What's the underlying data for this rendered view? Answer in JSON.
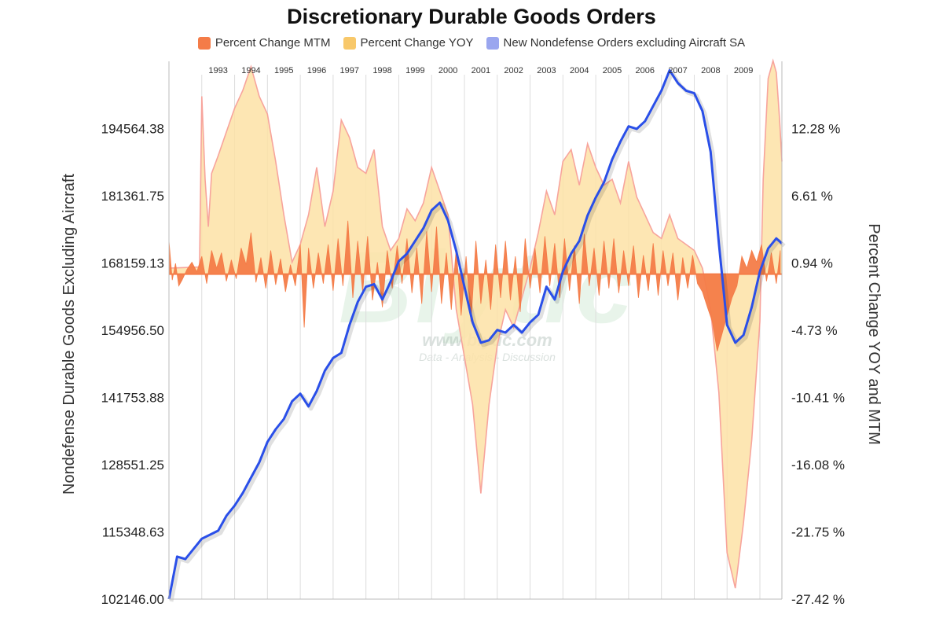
{
  "chart_data": {
    "type": "line",
    "title": "Discretionary Durable Goods Orders",
    "legend": "top",
    "y_left_label": "Nondefense Durable Goods Excluding Aircraft",
    "y_right_label": "Percent Change YOY and MTM",
    "y_left_ticks": [
      "194564.38",
      "181361.75",
      "168159.13",
      "154956.50",
      "141753.88",
      "128551.25",
      "115348.63",
      "102146.00"
    ],
    "y_right_ticks": [
      "12.28 %",
      "6.61 %",
      "0.94 %",
      "-4.73 %",
      "-10.41 %",
      "-16.08 %",
      "-21.75 %",
      "-27.42 %"
    ],
    "y_left_range": [
      102146.0,
      207767.0
    ],
    "y_right_range": [
      -27.42,
      17.95
    ],
    "x_range": [
      1992.0,
      2010.67
    ],
    "year_labels": [
      "1993",
      "1994",
      "1995",
      "1996",
      "1997",
      "1998",
      "1999",
      "2000",
      "2001",
      "2002",
      "2003",
      "2004",
      "2005",
      "2006",
      "2007",
      "2008",
      "2009"
    ],
    "grid": true,
    "colors": {
      "mtm": "#f47c48",
      "yoy_fill": "#fde2a6",
      "yoy_line": "#f7a49c",
      "orders": "#2a4fe8",
      "legend_orders": "#9aa6ef",
      "legend_yoy": "#f8c86a"
    },
    "series": [
      {
        "name": "New Nondefense Orders excluding Aircraft SA",
        "axis": "left",
        "points": [
          [
            1992.0,
            102146
          ],
          [
            1992.25,
            110500
          ],
          [
            1992.5,
            110000
          ],
          [
            1992.75,
            112000
          ],
          [
            1993.0,
            114000
          ],
          [
            1993.25,
            114800
          ],
          [
            1993.5,
            115600
          ],
          [
            1993.75,
            118500
          ],
          [
            1994.0,
            120500
          ],
          [
            1994.25,
            123000
          ],
          [
            1994.5,
            126000
          ],
          [
            1994.75,
            129000
          ],
          [
            1995.0,
            133000
          ],
          [
            1995.25,
            135500
          ],
          [
            1995.5,
            137500
          ],
          [
            1995.75,
            141000
          ],
          [
            1996.0,
            142500
          ],
          [
            1996.25,
            140000
          ],
          [
            1996.5,
            143000
          ],
          [
            1996.75,
            147000
          ],
          [
            1997.0,
            149500
          ],
          [
            1997.25,
            150500
          ],
          [
            1997.5,
            156000
          ],
          [
            1997.75,
            160500
          ],
          [
            1998.0,
            163500
          ],
          [
            1998.25,
            164000
          ],
          [
            1998.5,
            161000
          ],
          [
            1998.75,
            164500
          ],
          [
            1999.0,
            168500
          ],
          [
            1999.25,
            170000
          ],
          [
            1999.5,
            172500
          ],
          [
            1999.75,
            175000
          ],
          [
            2000.0,
            178500
          ],
          [
            2000.25,
            180000
          ],
          [
            2000.5,
            176500
          ],
          [
            2000.75,
            170500
          ],
          [
            2001.0,
            163500
          ],
          [
            2001.25,
            156500
          ],
          [
            2001.5,
            152500
          ],
          [
            2001.75,
            153000
          ],
          [
            2002.0,
            155000
          ],
          [
            2002.25,
            154500
          ],
          [
            2002.5,
            156000
          ],
          [
            2002.75,
            154500
          ],
          [
            2003.0,
            156500
          ],
          [
            2003.25,
            158000
          ],
          [
            2003.5,
            163500
          ],
          [
            2003.75,
            161000
          ],
          [
            2004.0,
            166500
          ],
          [
            2004.25,
            170000
          ],
          [
            2004.5,
            172500
          ],
          [
            2004.75,
            177500
          ],
          [
            2005.0,
            181000
          ],
          [
            2005.25,
            184000
          ],
          [
            2005.5,
            188500
          ],
          [
            2005.75,
            192000
          ],
          [
            2006.0,
            195000
          ],
          [
            2006.25,
            194500
          ],
          [
            2006.5,
            196000
          ],
          [
            2006.75,
            199000
          ],
          [
            2007.0,
            202000
          ],
          [
            2007.25,
            206000
          ],
          [
            2007.5,
            203500
          ],
          [
            2007.75,
            202000
          ],
          [
            2008.0,
            201500
          ],
          [
            2008.25,
            198000
          ],
          [
            2008.5,
            190000
          ],
          [
            2008.75,
            172000
          ],
          [
            2009.0,
            156000
          ],
          [
            2009.25,
            152500
          ],
          [
            2009.5,
            154000
          ],
          [
            2009.75,
            159500
          ],
          [
            2010.0,
            166500
          ],
          [
            2010.25,
            171000
          ],
          [
            2010.5,
            173000
          ],
          [
            2010.67,
            172000
          ]
        ]
      },
      {
        "name": "Percent Change YOY",
        "axis": "right",
        "points": [
          [
            1992.0,
            0.5
          ],
          [
            1992.93,
            0.6
          ],
          [
            1993.0,
            15.0
          ],
          [
            1993.1,
            8.0
          ],
          [
            1993.2,
            4.0
          ],
          [
            1993.3,
            8.5
          ],
          [
            1993.5,
            10.0
          ],
          [
            1993.75,
            12.0
          ],
          [
            1994.0,
            14.0
          ],
          [
            1994.25,
            15.5
          ],
          [
            1994.5,
            17.5
          ],
          [
            1994.75,
            15.0
          ],
          [
            1995.0,
            13.5
          ],
          [
            1995.25,
            9.5
          ],
          [
            1995.5,
            5.0
          ],
          [
            1995.75,
            1.0
          ],
          [
            1996.0,
            2.5
          ],
          [
            1996.25,
            5.0
          ],
          [
            1996.5,
            9.0
          ],
          [
            1996.75,
            4.0
          ],
          [
            1997.0,
            7.0
          ],
          [
            1997.25,
            13.0
          ],
          [
            1997.5,
            11.5
          ],
          [
            1997.75,
            9.0
          ],
          [
            1998.0,
            8.5
          ],
          [
            1998.25,
            10.5
          ],
          [
            1998.5,
            4.0
          ],
          [
            1998.75,
            2.0
          ],
          [
            1999.0,
            3.0
          ],
          [
            1999.25,
            5.5
          ],
          [
            1999.5,
            4.5
          ],
          [
            1999.75,
            6.0
          ],
          [
            2000.0,
            9.0
          ],
          [
            2000.25,
            7.0
          ],
          [
            2000.5,
            5.0
          ],
          [
            2000.75,
            -3.0
          ],
          [
            2001.0,
            -7.0
          ],
          [
            2001.25,
            -11.0
          ],
          [
            2001.5,
            -18.5
          ],
          [
            2001.75,
            -11.0
          ],
          [
            2002.0,
            -6.0
          ],
          [
            2002.25,
            -3.0
          ],
          [
            2002.5,
            -4.5
          ],
          [
            2002.75,
            -2.0
          ],
          [
            2003.0,
            0.5
          ],
          [
            2003.25,
            3.5
          ],
          [
            2003.5,
            7.0
          ],
          [
            2003.75,
            5.0
          ],
          [
            2004.0,
            9.5
          ],
          [
            2004.25,
            10.5
          ],
          [
            2004.5,
            7.5
          ],
          [
            2004.75,
            11.0
          ],
          [
            2005.0,
            9.0
          ],
          [
            2005.25,
            7.5
          ],
          [
            2005.5,
            8.0
          ],
          [
            2005.75,
            6.0
          ],
          [
            2006.0,
            9.5
          ],
          [
            2006.25,
            6.5
          ],
          [
            2006.5,
            5.0
          ],
          [
            2006.75,
            3.5
          ],
          [
            2007.0,
            3.0
          ],
          [
            2007.25,
            5.0
          ],
          [
            2007.5,
            3.0
          ],
          [
            2007.75,
            2.5
          ],
          [
            2008.0,
            2.0
          ],
          [
            2008.25,
            0.5
          ],
          [
            2008.5,
            -3.0
          ],
          [
            2008.75,
            -10.0
          ],
          [
            2009.0,
            -23.5
          ],
          [
            2009.25,
            -26.5
          ],
          [
            2009.5,
            -21.0
          ],
          [
            2009.75,
            -14.0
          ],
          [
            2010.0,
            -4.0
          ],
          [
            2010.1,
            8.0
          ],
          [
            2010.25,
            16.5
          ],
          [
            2010.4,
            18.0
          ],
          [
            2010.5,
            17.0
          ],
          [
            2010.6,
            13.0
          ],
          [
            2010.67,
            9.5
          ]
        ]
      },
      {
        "name": "Percent Change MTM",
        "axis": "right",
        "points": [
          [
            1992.0,
            2.8
          ],
          [
            1992.1,
            -0.5
          ],
          [
            1992.2,
            0.9
          ],
          [
            1992.3,
            -1.0
          ],
          [
            1992.4,
            -0.5
          ],
          [
            1992.55,
            0.4
          ],
          [
            1992.7,
            1.0
          ],
          [
            1992.85,
            0.2
          ],
          [
            1993.0,
            1.5
          ],
          [
            1993.15,
            -0.8
          ],
          [
            1993.3,
            2.0
          ],
          [
            1993.45,
            0.5
          ],
          [
            1993.6,
            1.8
          ],
          [
            1993.75,
            -0.6
          ],
          [
            1993.9,
            1.2
          ],
          [
            1994.05,
            -0.4
          ],
          [
            1994.2,
            2.2
          ],
          [
            1994.35,
            0.8
          ],
          [
            1994.5,
            3.5
          ],
          [
            1994.65,
            -0.7
          ],
          [
            1994.8,
            1.4
          ],
          [
            1994.95,
            -1.2
          ],
          [
            1995.1,
            2.0
          ],
          [
            1995.25,
            -0.9
          ],
          [
            1995.4,
            1.3
          ],
          [
            1995.55,
            -1.5
          ],
          [
            1995.7,
            0.8
          ],
          [
            1995.85,
            -1.0
          ],
          [
            1996.0,
            2.5
          ],
          [
            1996.12,
            -4.5
          ],
          [
            1996.25,
            2.2
          ],
          [
            1996.4,
            -1.2
          ],
          [
            1996.55,
            1.8
          ],
          [
            1996.7,
            -0.8
          ],
          [
            1996.85,
            2.5
          ],
          [
            1997.0,
            -1.4
          ],
          [
            1997.15,
            3.0
          ],
          [
            1997.3,
            -1.0
          ],
          [
            1997.45,
            4.5
          ],
          [
            1997.6,
            -2.0
          ],
          [
            1997.75,
            2.8
          ],
          [
            1997.9,
            -1.5
          ],
          [
            1998.05,
            3.2
          ],
          [
            1998.2,
            -2.2
          ],
          [
            1998.35,
            1.0
          ],
          [
            1998.5,
            -2.8
          ],
          [
            1998.65,
            2.0
          ],
          [
            1998.8,
            -1.2
          ],
          [
            1998.95,
            2.4
          ],
          [
            1999.1,
            -0.8
          ],
          [
            1999.25,
            3.0
          ],
          [
            1999.4,
            -1.6
          ],
          [
            1999.55,
            2.2
          ],
          [
            1999.7,
            -2.5
          ],
          [
            1999.85,
            3.6
          ],
          [
            2000.0,
            -1.5
          ],
          [
            2000.15,
            4.0
          ],
          [
            2000.3,
            -2.5
          ],
          [
            2000.45,
            1.8
          ],
          [
            2000.6,
            -3.0
          ],
          [
            2000.75,
            2.2
          ],
          [
            2000.9,
            -3.5
          ],
          [
            2001.05,
            1.5
          ],
          [
            2001.2,
            -4.0
          ],
          [
            2001.35,
            2.8
          ],
          [
            2001.5,
            -2.5
          ],
          [
            2001.65,
            1.2
          ],
          [
            2001.8,
            -3.0
          ],
          [
            2001.95,
            2.5
          ],
          [
            2002.1,
            -2.0
          ],
          [
            2002.25,
            2.8
          ],
          [
            2002.4,
            -2.2
          ],
          [
            2002.55,
            1.5
          ],
          [
            2002.7,
            -3.2
          ],
          [
            2002.85,
            3.0
          ],
          [
            2003.0,
            -1.2
          ],
          [
            2003.15,
            2.2
          ],
          [
            2003.3,
            -1.6
          ],
          [
            2003.45,
            3.2
          ],
          [
            2003.6,
            -1.0
          ],
          [
            2003.75,
            2.6
          ],
          [
            2003.9,
            -2.0
          ],
          [
            2004.05,
            3.0
          ],
          [
            2004.2,
            -1.4
          ],
          [
            2004.35,
            2.4
          ],
          [
            2004.5,
            -2.5
          ],
          [
            2004.65,
            3.4
          ],
          [
            2004.8,
            -1.0
          ],
          [
            2004.95,
            2.2
          ],
          [
            2005.1,
            -1.8
          ],
          [
            2005.25,
            2.8
          ],
          [
            2005.4,
            -1.2
          ],
          [
            2005.55,
            3.0
          ],
          [
            2005.7,
            -1.6
          ],
          [
            2005.85,
            2.0
          ],
          [
            2006.0,
            -1.0
          ],
          [
            2006.15,
            2.4
          ],
          [
            2006.3,
            -2.0
          ],
          [
            2006.45,
            1.6
          ],
          [
            2006.6,
            -1.4
          ],
          [
            2006.75,
            2.6
          ],
          [
            2006.9,
            -1.8
          ],
          [
            2007.05,
            2.0
          ],
          [
            2007.2,
            -1.0
          ],
          [
            2007.35,
            1.8
          ],
          [
            2007.5,
            -2.2
          ],
          [
            2007.65,
            1.4
          ],
          [
            2007.8,
            -1.2
          ],
          [
            2007.95,
            1.6
          ],
          [
            2008.1,
            -0.8
          ],
          [
            2008.25,
            -1.5
          ],
          [
            2008.4,
            -2.8
          ],
          [
            2008.55,
            -4.0
          ],
          [
            2008.7,
            -6.5
          ],
          [
            2008.85,
            -5.0
          ],
          [
            2009.0,
            -3.5
          ],
          [
            2009.15,
            -2.0
          ],
          [
            2009.3,
            -1.0
          ],
          [
            2009.45,
            1.5
          ],
          [
            2009.6,
            0.5
          ],
          [
            2009.75,
            2.0
          ],
          [
            2009.9,
            1.0
          ],
          [
            2010.05,
            2.5
          ],
          [
            2010.2,
            -0.6
          ],
          [
            2010.35,
            1.8
          ],
          [
            2010.5,
            -0.8
          ],
          [
            2010.62,
            2.0
          ]
        ]
      }
    ]
  },
  "watermark": {
    "big": "Blytic",
    "url": "www.blytic.com",
    "tagline": "Data - Analysis - Discussion"
  }
}
